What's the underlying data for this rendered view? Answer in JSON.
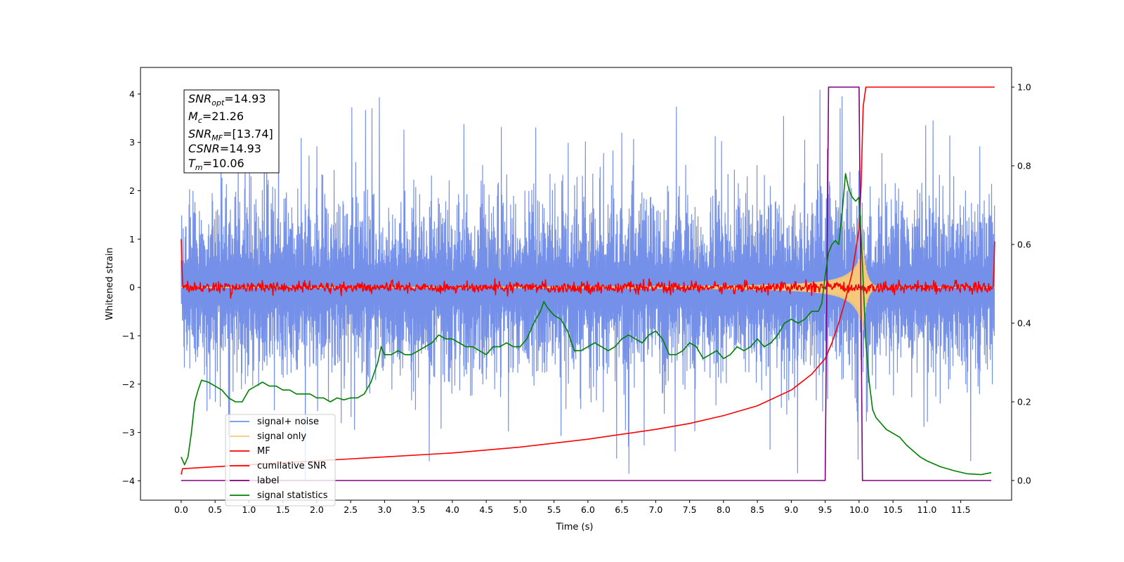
{
  "chart_data": {
    "type": "line",
    "title": "",
    "xlabel": "Time (s)",
    "ylabel": "Whitened strain",
    "xlim": [
      -0.6,
      12.25
    ],
    "ylim": [
      -4.4,
      4.55
    ],
    "y2lim": [
      -0.05,
      1.05
    ],
    "x_ticks": [
      "0.0",
      "0.5",
      "1.0",
      "1.5",
      "2.0",
      "2.5",
      "3.0",
      "3.5",
      "4.0",
      "4.5",
      "5.0",
      "5.5",
      "6.0",
      "6.5",
      "7.0",
      "7.5",
      "8.0",
      "8.5",
      "9.0",
      "9.5",
      "10.0",
      "10.5",
      "11.0",
      "11.5"
    ],
    "y_ticks": [
      "4",
      "3",
      "2",
      "1",
      "0",
      "−1",
      "−2",
      "−3",
      "−4"
    ],
    "y2_ticks": [
      "1.0",
      "0.8",
      "0.6",
      "0.4",
      "0.2",
      "0.0"
    ],
    "grid": false,
    "legend_position": "lower-left",
    "info_box": {
      "lines": [
        {
          "base": "SNR",
          "sub": "opt",
          "value": "=14.93"
        },
        {
          "base": "M",
          "sub": "c",
          "value": "=21.26"
        },
        {
          "base": "SNR",
          "sub": "MF",
          "value": "=[13.74]"
        },
        {
          "base": "CSNR",
          "sub": "",
          "value": "=14.93"
        },
        {
          "base": "T",
          "sub": "m",
          "value": "=10.06"
        }
      ]
    },
    "series": [
      {
        "name": "signal+ noise",
        "color": "#7590e8",
        "axis": "left",
        "kind": "noise",
        "x_range": [
          0,
          12.0
        ],
        "upper_envelope": [
          2.3,
          2.5
        ],
        "peak_max": 4.2,
        "lower_envelope": [
          -2.2,
          -2.6
        ],
        "trough_min": -4.0
      },
      {
        "name": "signal only",
        "color": "#f5c97a",
        "axis": "left",
        "kind": "chirp",
        "x_range": [
          0,
          12.0
        ],
        "merger_time": 10.06,
        "peak_amplitude": 0.9
      },
      {
        "name": "MF",
        "color": "#ff0000",
        "axis": "left",
        "kind": "mf",
        "x_range": [
          0,
          12.0
        ],
        "baseline": 0.0,
        "start_value": 1.0,
        "end_value": 0.95
      },
      {
        "name": "cumilative SNR",
        "color": "#ff0000",
        "axis": "right",
        "x": [
          0.0,
          0.02,
          1.0,
          2.0,
          3.0,
          4.0,
          5.0,
          6.0,
          7.0,
          7.5,
          8.0,
          8.5,
          9.0,
          9.3,
          9.5,
          9.6,
          9.7,
          9.8,
          9.9,
          10.0,
          10.03,
          10.06,
          10.1,
          10.3,
          11.0,
          12.0
        ],
        "y": [
          0.015,
          0.03,
          0.04,
          0.05,
          0.06,
          0.07,
          0.085,
          0.105,
          0.13,
          0.145,
          0.165,
          0.19,
          0.23,
          0.27,
          0.31,
          0.35,
          0.4,
          0.46,
          0.53,
          0.64,
          0.75,
          0.95,
          1.0,
          1.0,
          1.0,
          1.0
        ]
      },
      {
        "name": "label",
        "color": "#800080",
        "axis": "right",
        "x": [
          0.0,
          9.5,
          9.55,
          10.0,
          10.05,
          11.95
        ],
        "y": [
          0.0,
          0.0,
          1.0,
          1.0,
          0.0,
          0.0
        ]
      },
      {
        "name": "signal statistics",
        "color": "#008000",
        "axis": "right",
        "x": [
          0.0,
          0.05,
          0.1,
          0.15,
          0.2,
          0.25,
          0.3,
          0.4,
          0.5,
          0.6,
          0.7,
          0.8,
          0.9,
          1.0,
          1.1,
          1.2,
          1.3,
          1.4,
          1.5,
          1.6,
          1.7,
          1.8,
          1.9,
          2.0,
          2.1,
          2.2,
          2.3,
          2.4,
          2.5,
          2.6,
          2.7,
          2.8,
          2.9,
          2.95,
          3.0,
          3.1,
          3.2,
          3.3,
          3.4,
          3.5,
          3.6,
          3.7,
          3.8,
          3.9,
          4.0,
          4.1,
          4.2,
          4.3,
          4.4,
          4.5,
          4.6,
          4.7,
          4.8,
          4.9,
          5.0,
          5.1,
          5.2,
          5.3,
          5.35,
          5.4,
          5.5,
          5.6,
          5.7,
          5.8,
          5.9,
          6.0,
          6.1,
          6.2,
          6.3,
          6.4,
          6.5,
          6.6,
          6.7,
          6.8,
          6.9,
          7.0,
          7.1,
          7.2,
          7.3,
          7.4,
          7.5,
          7.6,
          7.7,
          7.8,
          7.9,
          8.0,
          8.1,
          8.2,
          8.3,
          8.4,
          8.5,
          8.6,
          8.7,
          8.8,
          8.9,
          9.0,
          9.1,
          9.2,
          9.3,
          9.4,
          9.45,
          9.5,
          9.55,
          9.6,
          9.65,
          9.7,
          9.75,
          9.8,
          9.85,
          9.9,
          9.95,
          10.0,
          10.05,
          10.1,
          10.15,
          10.2,
          10.25,
          10.3,
          10.4,
          10.5,
          10.6,
          10.7,
          10.8,
          10.9,
          11.0,
          11.2,
          11.4,
          11.6,
          11.8,
          11.95
        ],
        "y": [
          0.06,
          0.04,
          0.06,
          0.12,
          0.2,
          0.23,
          0.255,
          0.25,
          0.24,
          0.23,
          0.21,
          0.2,
          0.2,
          0.23,
          0.24,
          0.25,
          0.24,
          0.24,
          0.23,
          0.23,
          0.22,
          0.22,
          0.22,
          0.21,
          0.21,
          0.2,
          0.21,
          0.205,
          0.21,
          0.21,
          0.22,
          0.25,
          0.3,
          0.34,
          0.32,
          0.32,
          0.33,
          0.32,
          0.32,
          0.33,
          0.34,
          0.35,
          0.37,
          0.36,
          0.36,
          0.35,
          0.34,
          0.34,
          0.33,
          0.32,
          0.34,
          0.34,
          0.35,
          0.34,
          0.34,
          0.36,
          0.4,
          0.43,
          0.455,
          0.44,
          0.42,
          0.41,
          0.38,
          0.33,
          0.33,
          0.34,
          0.35,
          0.34,
          0.33,
          0.34,
          0.36,
          0.37,
          0.36,
          0.35,
          0.37,
          0.38,
          0.36,
          0.32,
          0.32,
          0.33,
          0.35,
          0.34,
          0.31,
          0.32,
          0.33,
          0.31,
          0.32,
          0.34,
          0.33,
          0.34,
          0.36,
          0.34,
          0.35,
          0.37,
          0.4,
          0.41,
          0.4,
          0.41,
          0.43,
          0.43,
          0.45,
          0.52,
          0.58,
          0.6,
          0.61,
          0.6,
          0.68,
          0.78,
          0.74,
          0.72,
          0.71,
          0.72,
          0.55,
          0.35,
          0.25,
          0.18,
          0.16,
          0.15,
          0.13,
          0.12,
          0.11,
          0.09,
          0.075,
          0.06,
          0.05,
          0.035,
          0.025,
          0.017,
          0.015,
          0.02
        ]
      }
    ]
  }
}
